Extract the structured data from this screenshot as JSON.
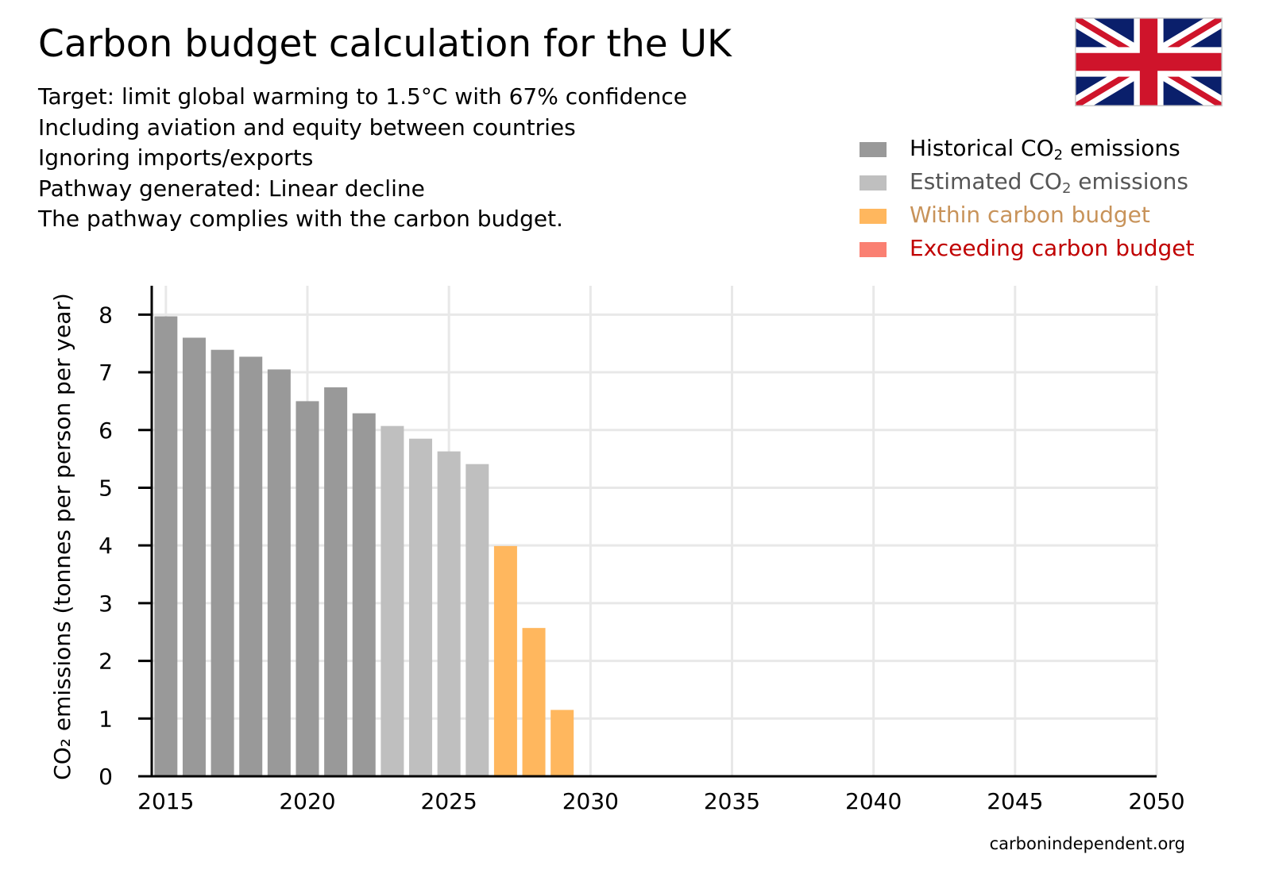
{
  "header": {
    "title": "Carbon budget calculation for the UK",
    "subtitle_lines": [
      "Target: limit global warming to 1.5°C with 67% confidence",
      "Including aviation and equity between countries",
      "Ignoring imports/exports",
      "Pathway generated: Linear decline",
      "The pathway complies with the carbon budget."
    ]
  },
  "flag": {
    "name": "United Kingdom flag",
    "colors": {
      "blue": "#0a1f6b",
      "red": "#cf142b",
      "white": "#ffffff"
    }
  },
  "legend": [
    {
      "pre": "Historical CO",
      "sub": "2",
      "post": " emissions",
      "swatch_color": "#999999",
      "text_color": "#000000"
    },
    {
      "pre": "Estimated CO",
      "sub": "2",
      "post": " emissions",
      "swatch_color": "#bfbfbf",
      "text_color": "#555555"
    },
    {
      "pre": "Within carbon budget",
      "sub": "",
      "post": "",
      "swatch_color": "#ffb75e",
      "text_color": "#c8935a"
    },
    {
      "pre": "Exceeding carbon budget",
      "sub": "",
      "post": "",
      "swatch_color": "#fa8072",
      "text_color": "#c00000"
    }
  ],
  "chart_data": {
    "type": "bar",
    "title": "Carbon budget calculation for the UK",
    "xlabel": "",
    "ylabel": "CO₂ emissions (tonnes per person per year)",
    "xlim": [
      2014.5,
      2050
    ],
    "ylim": [
      0,
      8.5
    ],
    "x_ticks": [
      2015,
      2020,
      2025,
      2030,
      2035,
      2040,
      2045,
      2050
    ],
    "y_ticks": [
      0,
      1,
      2,
      3,
      4,
      5,
      6,
      7,
      8
    ],
    "grid": true,
    "series": [
      {
        "name": "Historical CO2 emissions",
        "color": "#999999",
        "x": [
          2015,
          2016,
          2017,
          2018,
          2019,
          2020,
          2021,
          2022
        ],
        "values": [
          7.97,
          7.6,
          7.39,
          7.27,
          7.05,
          6.5,
          6.74,
          6.29
        ]
      },
      {
        "name": "Estimated CO2 emissions",
        "color": "#bfbfbf",
        "x": [
          2023,
          2024,
          2025,
          2026
        ],
        "values": [
          6.07,
          5.85,
          5.63,
          5.41
        ]
      },
      {
        "name": "Within carbon budget",
        "color": "#ffb75e",
        "x": [
          2027,
          2028,
          2029
        ],
        "values": [
          3.99,
          2.57,
          1.15
        ]
      },
      {
        "name": "Exceeding carbon budget",
        "color": "#fa8072",
        "x": [],
        "values": []
      }
    ]
  },
  "source": "carbonindependent.org"
}
